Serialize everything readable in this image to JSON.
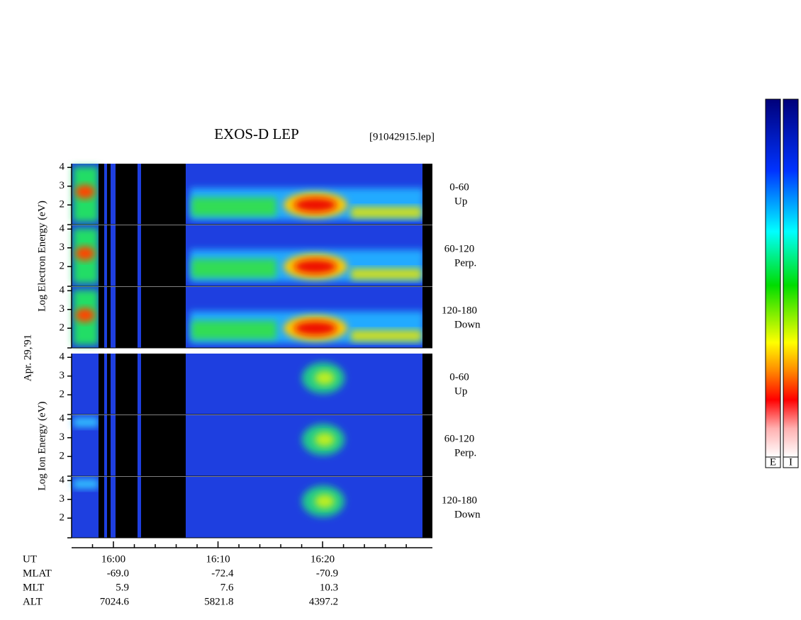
{
  "chart_data": {
    "type": "spectrogram",
    "title": "EXOS-D LEP",
    "file": "[91042915.lep]",
    "date_label": "Apr. 29,'91",
    "groups": [
      {
        "ylabel": "Log  Electron  Energy (eV)",
        "species": "electron",
        "panels": [
          {
            "angle": "0-60",
            "dir": "Up"
          },
          {
            "angle": "60-120",
            "dir": "Perp."
          },
          {
            "angle": "120-180",
            "dir": "Down"
          }
        ]
      },
      {
        "ylabel": "Log  Ion  Energy (eV)",
        "species": "ion",
        "panels": [
          {
            "angle": "0-60",
            "dir": "Up"
          },
          {
            "angle": "60-120",
            "dir": "Perp."
          },
          {
            "angle": "120-180",
            "dir": "Down"
          }
        ]
      }
    ],
    "ylim": [
      0.95,
      4.2
    ],
    "yticks": [
      2,
      3,
      4
    ],
    "xlim": [
      -4,
      30.5
    ],
    "xticks": [
      {
        "value": 0,
        "label": "16:00"
      },
      {
        "value": 10,
        "label": "16:10"
      },
      {
        "value": 20,
        "label": "16:20"
      }
    ],
    "xminor": [
      -2,
      2,
      4,
      6,
      8,
      12,
      14,
      16,
      18,
      22,
      24,
      26,
      28
    ],
    "orbit": {
      "labels": [
        "UT",
        "MLAT",
        "MLT",
        "ALT"
      ],
      "rows": [
        [
          "-69.0",
          "-72.4",
          "-70.9"
        ],
        [
          "5.9",
          "7.6",
          "10.3"
        ],
        [
          "7024.6",
          "5821.8",
          "4397.2"
        ]
      ]
    },
    "colorbars": [
      "E",
      "I"
    ]
  }
}
